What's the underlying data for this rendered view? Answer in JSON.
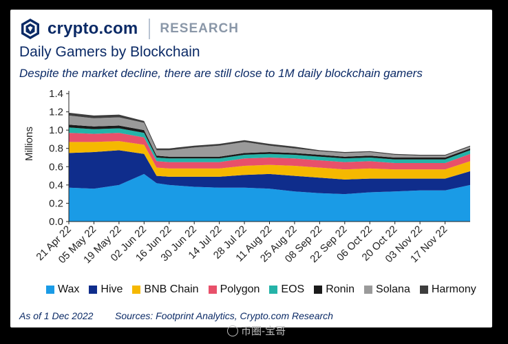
{
  "brand": {
    "name": "crypto.com",
    "section": "RESEARCH"
  },
  "footer": {
    "date": "As of 1 Dec 2022",
    "source": "Sources: Footprint Analytics, Crypto.com Research"
  },
  "watermark": "币圈-宝哥",
  "colors": {
    "Wax": "#1a9be6",
    "Hive": "#0f2d8c",
    "BNB Chain": "#f5b800",
    "Polygon": "#e8506a",
    "EOS": "#25b3a8",
    "Ronin": "#1a1a1a",
    "Solana": "#9a9a9a",
    "Harmony": "#3d3d3d"
  },
  "chart_data": {
    "type": "area",
    "title": "Daily Gamers by Blockchain",
    "subtitle": "Despite the market decline, there are still close to 1M daily blockchain gamers",
    "ylabel": "Millions",
    "xlabel": "",
    "ylim": [
      0,
      1.4
    ],
    "yticks": [
      "0.0",
      "0.2",
      "0.4",
      "0.6",
      "0.8",
      "1.0",
      "1.2",
      "1.4"
    ],
    "xlim": [
      "2022-04-21",
      "2022-12-01"
    ],
    "x_tick_labels": [
      "21 Apr 22",
      "05 May 22",
      "19 May 22",
      "02 Jun 22",
      "16 Jun 22",
      "30 Jun 22",
      "14 Jul 22",
      "28 Jul 22",
      "11 Aug 22",
      "25 Aug 22",
      "08 Sep 22",
      "22 Sep 22",
      "06 Oct 22",
      "20 Oct 22",
      "03 Nov 22",
      "17 Nov 22"
    ],
    "x_tick_dates": [
      "2022-04-21",
      "2022-05-05",
      "2022-05-19",
      "2022-06-02",
      "2022-06-16",
      "2022-06-30",
      "2022-07-14",
      "2022-07-28",
      "2022-08-11",
      "2022-08-25",
      "2022-09-08",
      "2022-09-22",
      "2022-10-06",
      "2022-10-20",
      "2022-11-03",
      "2022-11-17"
    ],
    "legend_position": "bottom",
    "grid": false,
    "x": [
      "2022-04-21",
      "2022-05-05",
      "2022-05-19",
      "2022-06-02",
      "2022-06-09",
      "2022-06-16",
      "2022-06-30",
      "2022-07-14",
      "2022-07-28",
      "2022-08-11",
      "2022-08-25",
      "2022-09-08",
      "2022-09-22",
      "2022-10-06",
      "2022-10-20",
      "2022-11-03",
      "2022-11-17",
      "2022-12-01"
    ],
    "series": [
      {
        "name": "Wax",
        "values": [
          0.37,
          0.36,
          0.4,
          0.52,
          0.42,
          0.4,
          0.38,
          0.37,
          0.37,
          0.36,
          0.33,
          0.31,
          0.3,
          0.32,
          0.33,
          0.34,
          0.34,
          0.4
        ]
      },
      {
        "name": "Hive",
        "values": [
          0.38,
          0.4,
          0.38,
          0.22,
          0.08,
          0.09,
          0.11,
          0.12,
          0.14,
          0.16,
          0.17,
          0.17,
          0.16,
          0.15,
          0.14,
          0.13,
          0.13,
          0.15
        ]
      },
      {
        "name": "BNB Chain",
        "values": [
          0.12,
          0.11,
          0.1,
          0.1,
          0.09,
          0.09,
          0.09,
          0.09,
          0.1,
          0.1,
          0.11,
          0.11,
          0.11,
          0.11,
          0.1,
          0.1,
          0.1,
          0.11
        ]
      },
      {
        "name": "Polygon",
        "values": [
          0.1,
          0.09,
          0.09,
          0.08,
          0.07,
          0.07,
          0.07,
          0.07,
          0.08,
          0.08,
          0.08,
          0.08,
          0.08,
          0.08,
          0.07,
          0.07,
          0.07,
          0.08
        ]
      },
      {
        "name": "EOS",
        "values": [
          0.06,
          0.05,
          0.05,
          0.05,
          0.04,
          0.04,
          0.04,
          0.04,
          0.04,
          0.04,
          0.04,
          0.04,
          0.04,
          0.04,
          0.04,
          0.04,
          0.04,
          0.04
        ]
      },
      {
        "name": "Ronin",
        "values": [
          0.03,
          0.03,
          0.03,
          0.03,
          0.02,
          0.02,
          0.02,
          0.02,
          0.02,
          0.02,
          0.02,
          0.02,
          0.02,
          0.02,
          0.02,
          0.02,
          0.02,
          0.02
        ]
      },
      {
        "name": "Solana",
        "values": [
          0.1,
          0.09,
          0.09,
          0.08,
          0.06,
          0.07,
          0.1,
          0.12,
          0.12,
          0.07,
          0.05,
          0.04,
          0.04,
          0.04,
          0.03,
          0.02,
          0.02,
          0.02
        ]
      },
      {
        "name": "Harmony",
        "values": [
          0.03,
          0.03,
          0.03,
          0.02,
          0.02,
          0.02,
          0.02,
          0.02,
          0.02,
          0.02,
          0.02,
          0.01,
          0.01,
          0.01,
          0.01,
          0.01,
          0.01,
          0.01
        ]
      }
    ]
  }
}
